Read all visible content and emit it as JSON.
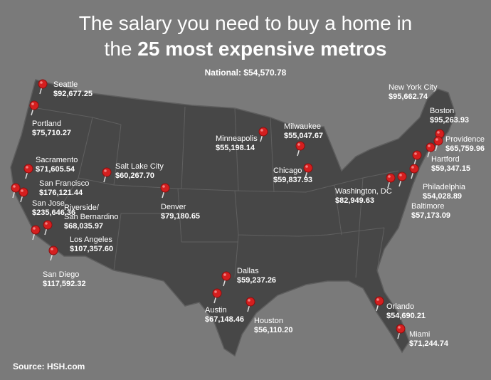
{
  "title": {
    "line1": "The salary you need to buy a home in",
    "line2_lead": "the",
    "line2_bold": "25 most expensive metros"
  },
  "national": "National: $54,570.78",
  "cities": [
    {
      "name": "Seattle",
      "salary": "$92,677.25"
    },
    {
      "name": "Portland",
      "salary": "$75,710.27"
    },
    {
      "name": "Sacramento",
      "salary": "$71,605.54"
    },
    {
      "name": "San Francisco",
      "salary": "$176,121.44"
    },
    {
      "name": "San Jose",
      "salary": "$235,646.36"
    },
    {
      "name": "Riverside/ San Bernardino",
      "salary": "$68,035.97"
    },
    {
      "name": "Los Angeles",
      "salary": "$107,357.60"
    },
    {
      "name": "San Diego",
      "salary": "$117,592.32"
    },
    {
      "name": "Salt Lake City",
      "salary": "$60,267.70"
    },
    {
      "name": "Denver",
      "salary": "$79,180.65"
    },
    {
      "name": "Minneapolis",
      "salary": "$55,198.14"
    },
    {
      "name": "Milwaukee",
      "salary": "$55,047.67"
    },
    {
      "name": "Chicago",
      "salary": "$59,837.93"
    },
    {
      "name": "Dallas",
      "salary": "$59,237.26"
    },
    {
      "name": "Austin",
      "salary": "$67,148.46"
    },
    {
      "name": "Houston",
      "salary": "$56,110.20"
    },
    {
      "name": "New York City",
      "salary": "$95,662.74"
    },
    {
      "name": "Boston",
      "salary": "$95,263.93"
    },
    {
      "name": "Providence",
      "salary": "$65,759.96"
    },
    {
      "name": "Hartford",
      "salary": "$59,347.15"
    },
    {
      "name": "Washington, DC",
      "salary": "$82,949.63"
    },
    {
      "name": "Philadelphia",
      "salary": "$54,028.89"
    },
    {
      "name": "Baltimore",
      "salary": "$57,173.09"
    },
    {
      "name": "Orlando",
      "salary": "$54,690.21"
    },
    {
      "name": "Miami",
      "salary": "$71,244.74"
    }
  ],
  "source": "Source: HSH.com"
}
